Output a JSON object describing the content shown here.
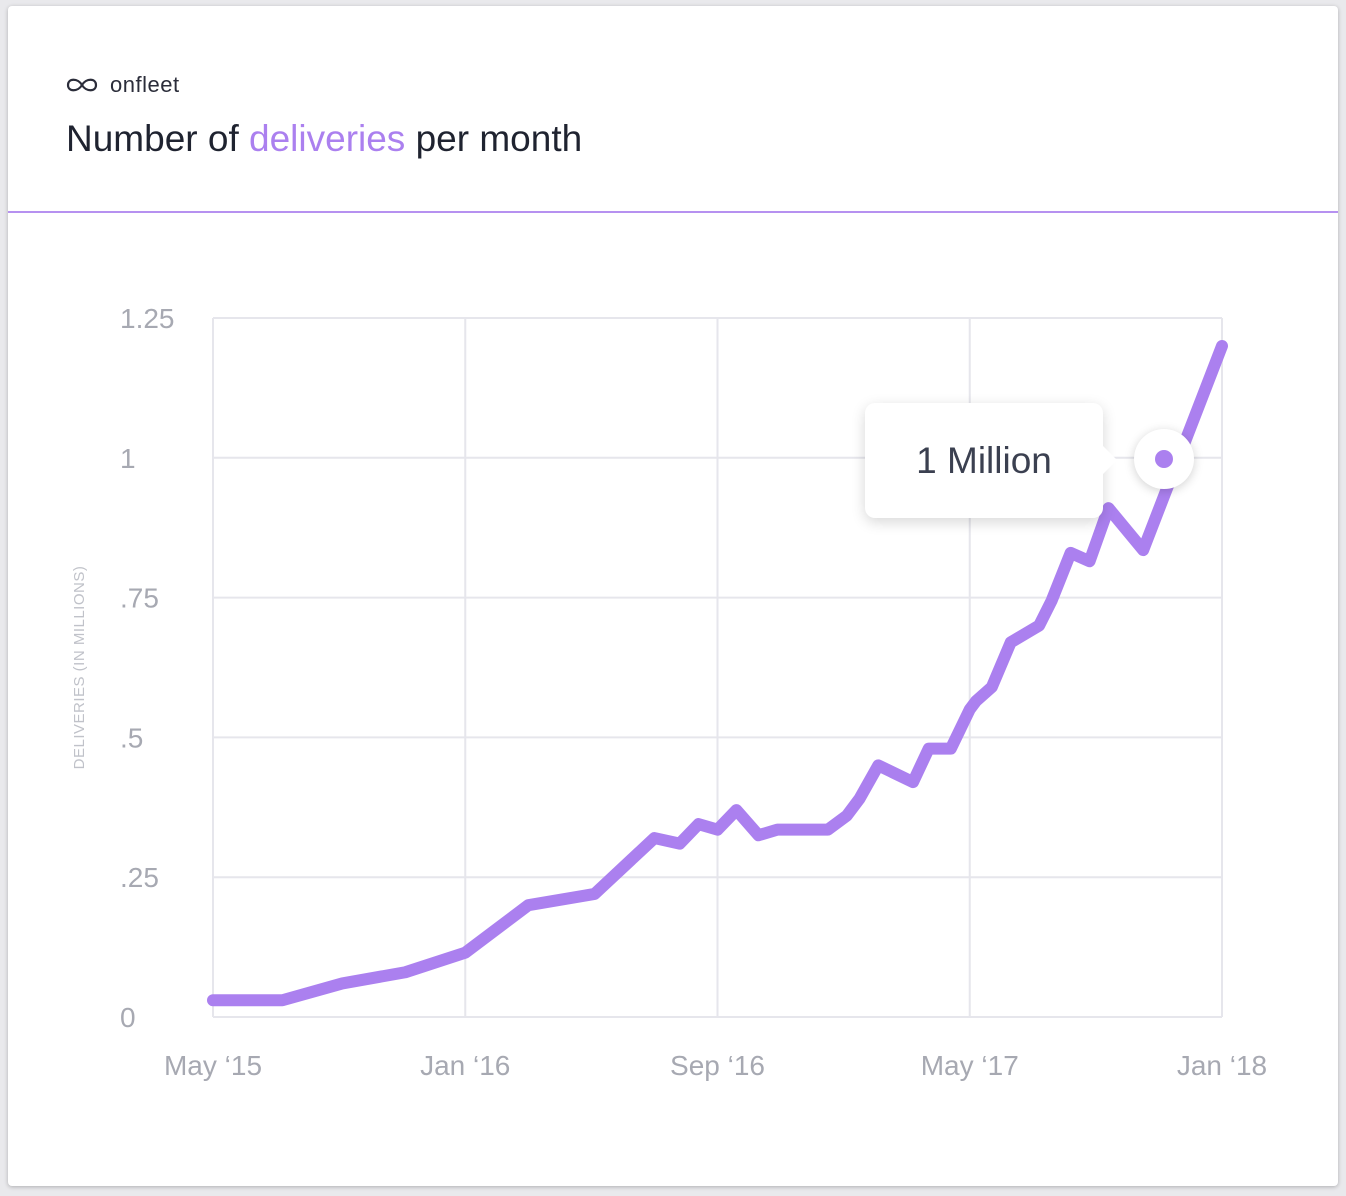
{
  "brand": {
    "logo_icon": "infinity-icon",
    "name": "onfleet"
  },
  "header": {
    "title_before": "Number of ",
    "title_highlight": "deliveries",
    "title_after": " per month"
  },
  "colors": {
    "accent": "#ab80ef",
    "grid": "#e6e6ec",
    "text": "#1f2330",
    "tick": "#a7a9b2"
  },
  "tooltip": {
    "label": "1 Million"
  },
  "chart_data": {
    "type": "line",
    "title": "Number of deliveries per month",
    "xlabel": "",
    "ylabel": "DELIVERIES (IN MILLIONS)",
    "ylim": [
      0,
      1.25
    ],
    "xlim": [
      0,
      32
    ],
    "grid": true,
    "x_ticks": [
      {
        "x": 0,
        "label": "May ‘15"
      },
      {
        "x": 8,
        "label": "Jan ‘16"
      },
      {
        "x": 16,
        "label": "Sep ‘16"
      },
      {
        "x": 24,
        "label": "May ‘17"
      },
      {
        "x": 32,
        "label": "Jan ‘18"
      }
    ],
    "y_ticks": [
      {
        "y": 0,
        "label": "0"
      },
      {
        "y": 0.25,
        "label": ".25"
      },
      {
        "y": 0.5,
        "label": ".5"
      },
      {
        "y": 0.75,
        "label": ".75"
      },
      {
        "y": 1,
        "label": "1"
      },
      {
        "y": 1.25,
        "label": "1.25"
      }
    ],
    "series": [
      {
        "name": "Deliveries",
        "x": [
          0,
          2.2,
          4.1,
          6.1,
          8,
          10,
          12.1,
          14,
          14.8,
          15.4,
          16,
          16.6,
          17.3,
          17.9,
          19.5,
          20.1,
          20.5,
          21.1,
          22.2,
          22.7,
          23.4,
          24,
          24.2,
          24.7,
          25.3,
          26.2,
          26.6,
          27.2,
          27.8,
          28.4,
          29.5,
          32
        ],
        "values": [
          0.03,
          0.03,
          0.06,
          0.08,
          0.115,
          0.2,
          0.22,
          0.32,
          0.31,
          0.345,
          0.335,
          0.37,
          0.325,
          0.335,
          0.335,
          0.36,
          0.39,
          0.45,
          0.42,
          0.48,
          0.48,
          0.55,
          0.565,
          0.59,
          0.67,
          0.7,
          0.745,
          0.83,
          0.815,
          0.91,
          0.835,
          1.2
        ]
      }
    ],
    "highlight": {
      "x": 30.5,
      "y": 1.0,
      "label": "1 Million"
    }
  }
}
